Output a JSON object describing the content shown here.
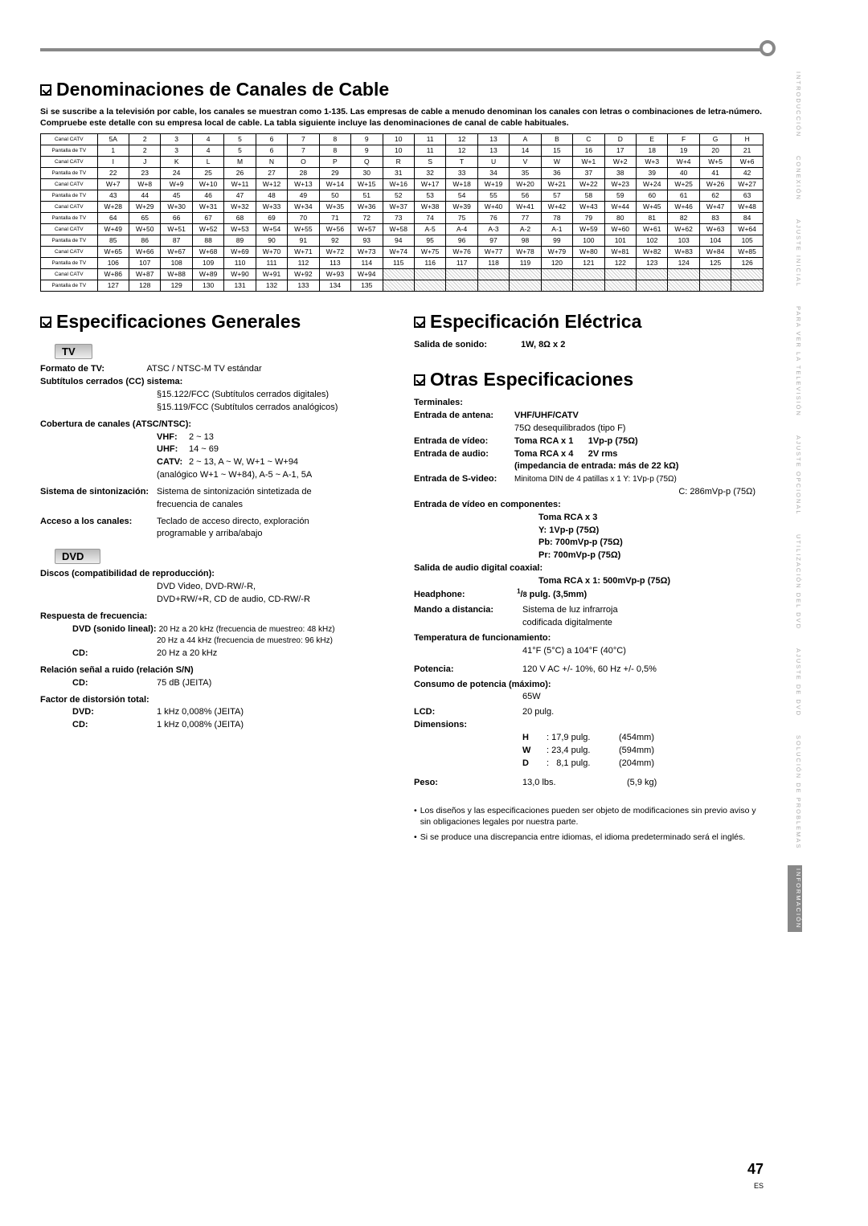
{
  "sections": {
    "cable_title": "Denominaciones de Canales de Cable",
    "cable_intro": "Si se suscribe a la televisión por cable, los canales se muestran como 1-135. Las empresas de cable a menudo denominan los canales con letras o combinaciones de letra-número. Compruebe este detalle con su empresa local de cable. La tabla siguiente incluye las denominaciones de canal de cable habituales.",
    "gen_title": "Especificaciones Generales",
    "elec_title": "Especificación Eléctrica",
    "other_title": "Otras Especificaciones"
  },
  "catv_table": {
    "row_labels": [
      "Canal CATV",
      "Pantalla de TV"
    ],
    "rows": [
      [
        "5A",
        "2",
        "3",
        "4",
        "5",
        "6",
        "7",
        "8",
        "9",
        "10",
        "11",
        "12",
        "13",
        "A",
        "B",
        "C",
        "D",
        "E",
        "F",
        "G",
        "H"
      ],
      [
        "1",
        "2",
        "3",
        "4",
        "5",
        "6",
        "7",
        "8",
        "9",
        "10",
        "11",
        "12",
        "13",
        "14",
        "15",
        "16",
        "17",
        "18",
        "19",
        "20",
        "21"
      ],
      [
        "I",
        "J",
        "K",
        "L",
        "M",
        "N",
        "O",
        "P",
        "Q",
        "R",
        "S",
        "T",
        "U",
        "V",
        "W",
        "W+1",
        "W+2",
        "W+3",
        "W+4",
        "W+5",
        "W+6"
      ],
      [
        "22",
        "23",
        "24",
        "25",
        "26",
        "27",
        "28",
        "29",
        "30",
        "31",
        "32",
        "33",
        "34",
        "35",
        "36",
        "37",
        "38",
        "39",
        "40",
        "41",
        "42"
      ],
      [
        "W+7",
        "W+8",
        "W+9",
        "W+10",
        "W+11",
        "W+12",
        "W+13",
        "W+14",
        "W+15",
        "W+16",
        "W+17",
        "W+18",
        "W+19",
        "W+20",
        "W+21",
        "W+22",
        "W+23",
        "W+24",
        "W+25",
        "W+26",
        "W+27"
      ],
      [
        "43",
        "44",
        "45",
        "46",
        "47",
        "48",
        "49",
        "50",
        "51",
        "52",
        "53",
        "54",
        "55",
        "56",
        "57",
        "58",
        "59",
        "60",
        "61",
        "62",
        "63"
      ],
      [
        "W+28",
        "W+29",
        "W+30",
        "W+31",
        "W+32",
        "W+33",
        "W+34",
        "W+35",
        "W+36",
        "W+37",
        "W+38",
        "W+39",
        "W+40",
        "W+41",
        "W+42",
        "W+43",
        "W+44",
        "W+45",
        "W+46",
        "W+47",
        "W+48"
      ],
      [
        "64",
        "65",
        "66",
        "67",
        "68",
        "69",
        "70",
        "71",
        "72",
        "73",
        "74",
        "75",
        "76",
        "77",
        "78",
        "79",
        "80",
        "81",
        "82",
        "83",
        "84"
      ],
      [
        "W+49",
        "W+50",
        "W+51",
        "W+52",
        "W+53",
        "W+54",
        "W+55",
        "W+56",
        "W+57",
        "W+58",
        "A-5",
        "A-4",
        "A-3",
        "A-2",
        "A-1",
        "W+59",
        "W+60",
        "W+61",
        "W+62",
        "W+63",
        "W+64"
      ],
      [
        "85",
        "86",
        "87",
        "88",
        "89",
        "90",
        "91",
        "92",
        "93",
        "94",
        "95",
        "96",
        "97",
        "98",
        "99",
        "100",
        "101",
        "102",
        "103",
        "104",
        "105"
      ],
      [
        "W+65",
        "W+66",
        "W+67",
        "W+68",
        "W+69",
        "W+70",
        "W+71",
        "W+72",
        "W+73",
        "W+74",
        "W+75",
        "W+76",
        "W+77",
        "W+78",
        "W+79",
        "W+80",
        "W+81",
        "W+82",
        "W+83",
        "W+84",
        "W+85"
      ],
      [
        "106",
        "107",
        "108",
        "109",
        "110",
        "111",
        "112",
        "113",
        "114",
        "115",
        "116",
        "117",
        "118",
        "119",
        "120",
        "121",
        "122",
        "123",
        "124",
        "125",
        "126"
      ],
      [
        "W+86",
        "W+87",
        "W+88",
        "W+89",
        "W+90",
        "W+91",
        "W+92",
        "W+93",
        "W+94",
        "",
        "",
        "",
        "",
        "",
        "",
        "",
        "",
        "",
        "",
        "",
        ""
      ],
      [
        "127",
        "128",
        "129",
        "130",
        "131",
        "132",
        "133",
        "134",
        "135",
        "",
        "",
        "",
        "",
        "",
        "",
        "",
        "",
        "",
        "",
        "",
        ""
      ]
    ],
    "blanks_after_col": 9
  },
  "tv": {
    "hdr": "TV",
    "formato_lbl": "Formato de TV:",
    "formato_val": "ATSC / NTSC-M TV estándar",
    "subt_lbl": "Subtítulos cerrados (CC) sistema:",
    "subt_val1": "§15.122/FCC (Subtítulos cerrados digitales)",
    "subt_val2": "§15.119/FCC (Subtítulos cerrados analógicos)",
    "cov_lbl": "Cobertura de canales (ATSC/NTSC):",
    "vhf_lbl": "VHF:",
    "vhf_val": "2 ~ 13",
    "uhf_lbl": "UHF:",
    "uhf_val": "14 ~ 69",
    "catv_lbl": "CATV:",
    "catv_val": "2 ~ 13, A ~ W,  W+1 ~ W+94",
    "catv_val2": "(analógico W+1 ~ W+84), A-5 ~ A-1, 5A",
    "sint_lbl": "Sistema de sintonización:",
    "sint_val": "Sistema de sintonización sintetizada de frecuencia de canales",
    "acc_lbl": "Acceso a los canales:",
    "acc_val": "Teclado de acceso directo, exploración programable y arriba/abajo"
  },
  "dvd": {
    "hdr": "DVD",
    "disc_lbl": "Discos (compatibilidad de reproducción):",
    "disc_val1": "DVD Video, DVD-RW/-R,",
    "disc_val2": "DVD+RW/+R, CD de audio, CD-RW/-R",
    "freq_lbl": "Respuesta de frecuencia:",
    "dvd_lin_lbl": "DVD (sonido lineal):",
    "dvd_lin_val1": "20 Hz a 20 kHz (frecuencia de muestreo: 48 kHz)",
    "dvd_lin_val2": "20 Hz a 44 kHz (frecuencia de muestreo: 96 kHz)",
    "cd_lbl": "CD:",
    "cd_val": "20 Hz a 20 kHz",
    "sn_lbl": "Relación señal a ruido (relación S/N)",
    "sn_cd_lbl": "CD:",
    "sn_cd_val": "75 dB (JEITA)",
    "dist_lbl": "Factor de distorsión total:",
    "dist_dvd_lbl": "DVD:",
    "dist_dvd_val": "1 kHz 0,008% (JEITA)",
    "dist_cd_lbl": "CD:",
    "dist_cd_val": "1 kHz 0,008% (JEITA)"
  },
  "elec": {
    "sonido_lbl": "Salida de sonido:",
    "sonido_val": "1W, 8Ω x 2"
  },
  "other": {
    "term_lbl": "Terminales:",
    "ant_lbl": "Entrada de antena:",
    "ant_val": "VHF/UHF/CATV",
    "ant_val2": "75Ω desequilibrados (tipo F)",
    "vid_lbl": "Entrada de vídeo:",
    "vid_val": "Toma RCA x 1",
    "vid_val2": "1Vp-p (75Ω)",
    "aud_lbl": "Entrada de audio:",
    "aud_val": "Toma RCA x 4",
    "aud_val2": "2V rms",
    "aud_val3": "(impedancia de entrada: más de 22 kΩ)",
    "svid_lbl": "Entrada de S-video:",
    "svid_val": "Minitoma DIN de 4 patillas x 1  Y: 1Vp-p (75Ω)",
    "svid_val2": "C: 286mVp-p (75Ω)",
    "comp_lbl": "Entrada de vídeo en componentes:",
    "comp_val1": "Toma RCA x 3",
    "comp_val2": "Y:    1Vp-p (75Ω)",
    "comp_val3": "Pb: 700mVp-p (75Ω)",
    "comp_val4": "Pr:  700mVp-p (75Ω)",
    "coax_lbl": "Salida de audio digital coaxial:",
    "coax_val": "Toma RCA x 1: 500mVp-p (75Ω)",
    "hp_lbl": "Headphone:",
    "hp_val_a": "1",
    "hp_val_b": "/",
    "hp_val_c": "8",
    "hp_val_d": " pulg. (3,5mm)",
    "rc_lbl": "Mando a distancia:",
    "rc_val": "Sistema de luz infrarroja codificada digitalmente",
    "temp_lbl": "Temperatura de funcionamiento:",
    "temp_val": "41°F (5°C) a 104°F (40°C)",
    "pot_lbl": "Potencia:",
    "pot_val": "120 V AC +/- 10%, 60 Hz +/- 0,5%",
    "cons_lbl": "Consumo de potencia (máximo):",
    "cons_val": "65W",
    "lcd_lbl": "LCD:",
    "lcd_val": "20 pulg.",
    "dim_lbl": "Dimensions:",
    "dim_h_l": "H",
    "dim_h_v": ": 17,9 pulg.",
    "dim_h_m": "(454mm)",
    "dim_w_l": "W",
    "dim_w_v": ": 23,4 pulg.",
    "dim_w_m": "(594mm)",
    "dim_d_l": "D",
    "dim_d_v": ":   8,1 pulg.",
    "dim_d_m": "(204mm)",
    "peso_lbl": "Peso:",
    "peso_val": "13,0 lbs.",
    "peso_kg": "(5,9 kg)"
  },
  "notes": {
    "n1": "Los diseños y las especificaciones pueden ser objeto de modificaciones sin previo aviso y sin obligaciones legales por nuestra parte.",
    "n2": "Si se produce una discrepancia entre idiomas, el idioma predeterminado será el inglés."
  },
  "tabs": [
    "INTRODUCCIÓN",
    "CONEXIÓN",
    "AJUSTE INICIAL",
    "PARA VER LA TELEVISIÓN",
    "AJUSTE OPCIONAL",
    "UTILIZACIÓN DEL DVD",
    "AJUSTE DE DVD",
    "SOLUCIÓN DE PROBLEMAS",
    "INFORMACIÓN"
  ],
  "active_tab": 8,
  "page_number": "47",
  "page_lang": "ES"
}
